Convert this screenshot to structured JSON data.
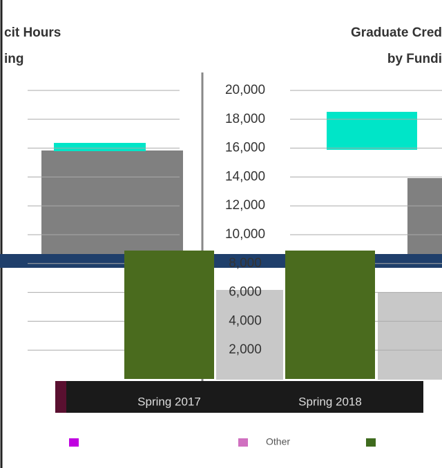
{
  "chart_data": {
    "type": "bar",
    "left_title": [
      "cit Hours",
      "ing"
    ],
    "title": [
      "Graduate Cred",
      "by Fundi"
    ],
    "categories": [
      "Spring 2017",
      "Spring 2018"
    ],
    "values": [
      8900,
      8900
    ],
    "color": "#4a6b1e",
    "ylim": [
      0,
      20000
    ],
    "yticks": [
      {
        "value": 2000,
        "label": "2,000"
      },
      {
        "value": 4000,
        "label": "4,000"
      },
      {
        "value": 6000,
        "label": "6,000"
      },
      {
        "value": 8000,
        "label": "8,000"
      },
      {
        "value": 10000,
        "label": "10,000"
      },
      {
        "value": 12000,
        "label": "12,000"
      },
      {
        "value": 14000,
        "label": "14,000"
      },
      {
        "value": 16000,
        "label": "16,000"
      },
      {
        "value": 18000,
        "label": "18,000"
      },
      {
        "value": 20000,
        "label": "20,000"
      }
    ],
    "grid": true,
    "legend_texts": [
      "Other"
    ]
  }
}
